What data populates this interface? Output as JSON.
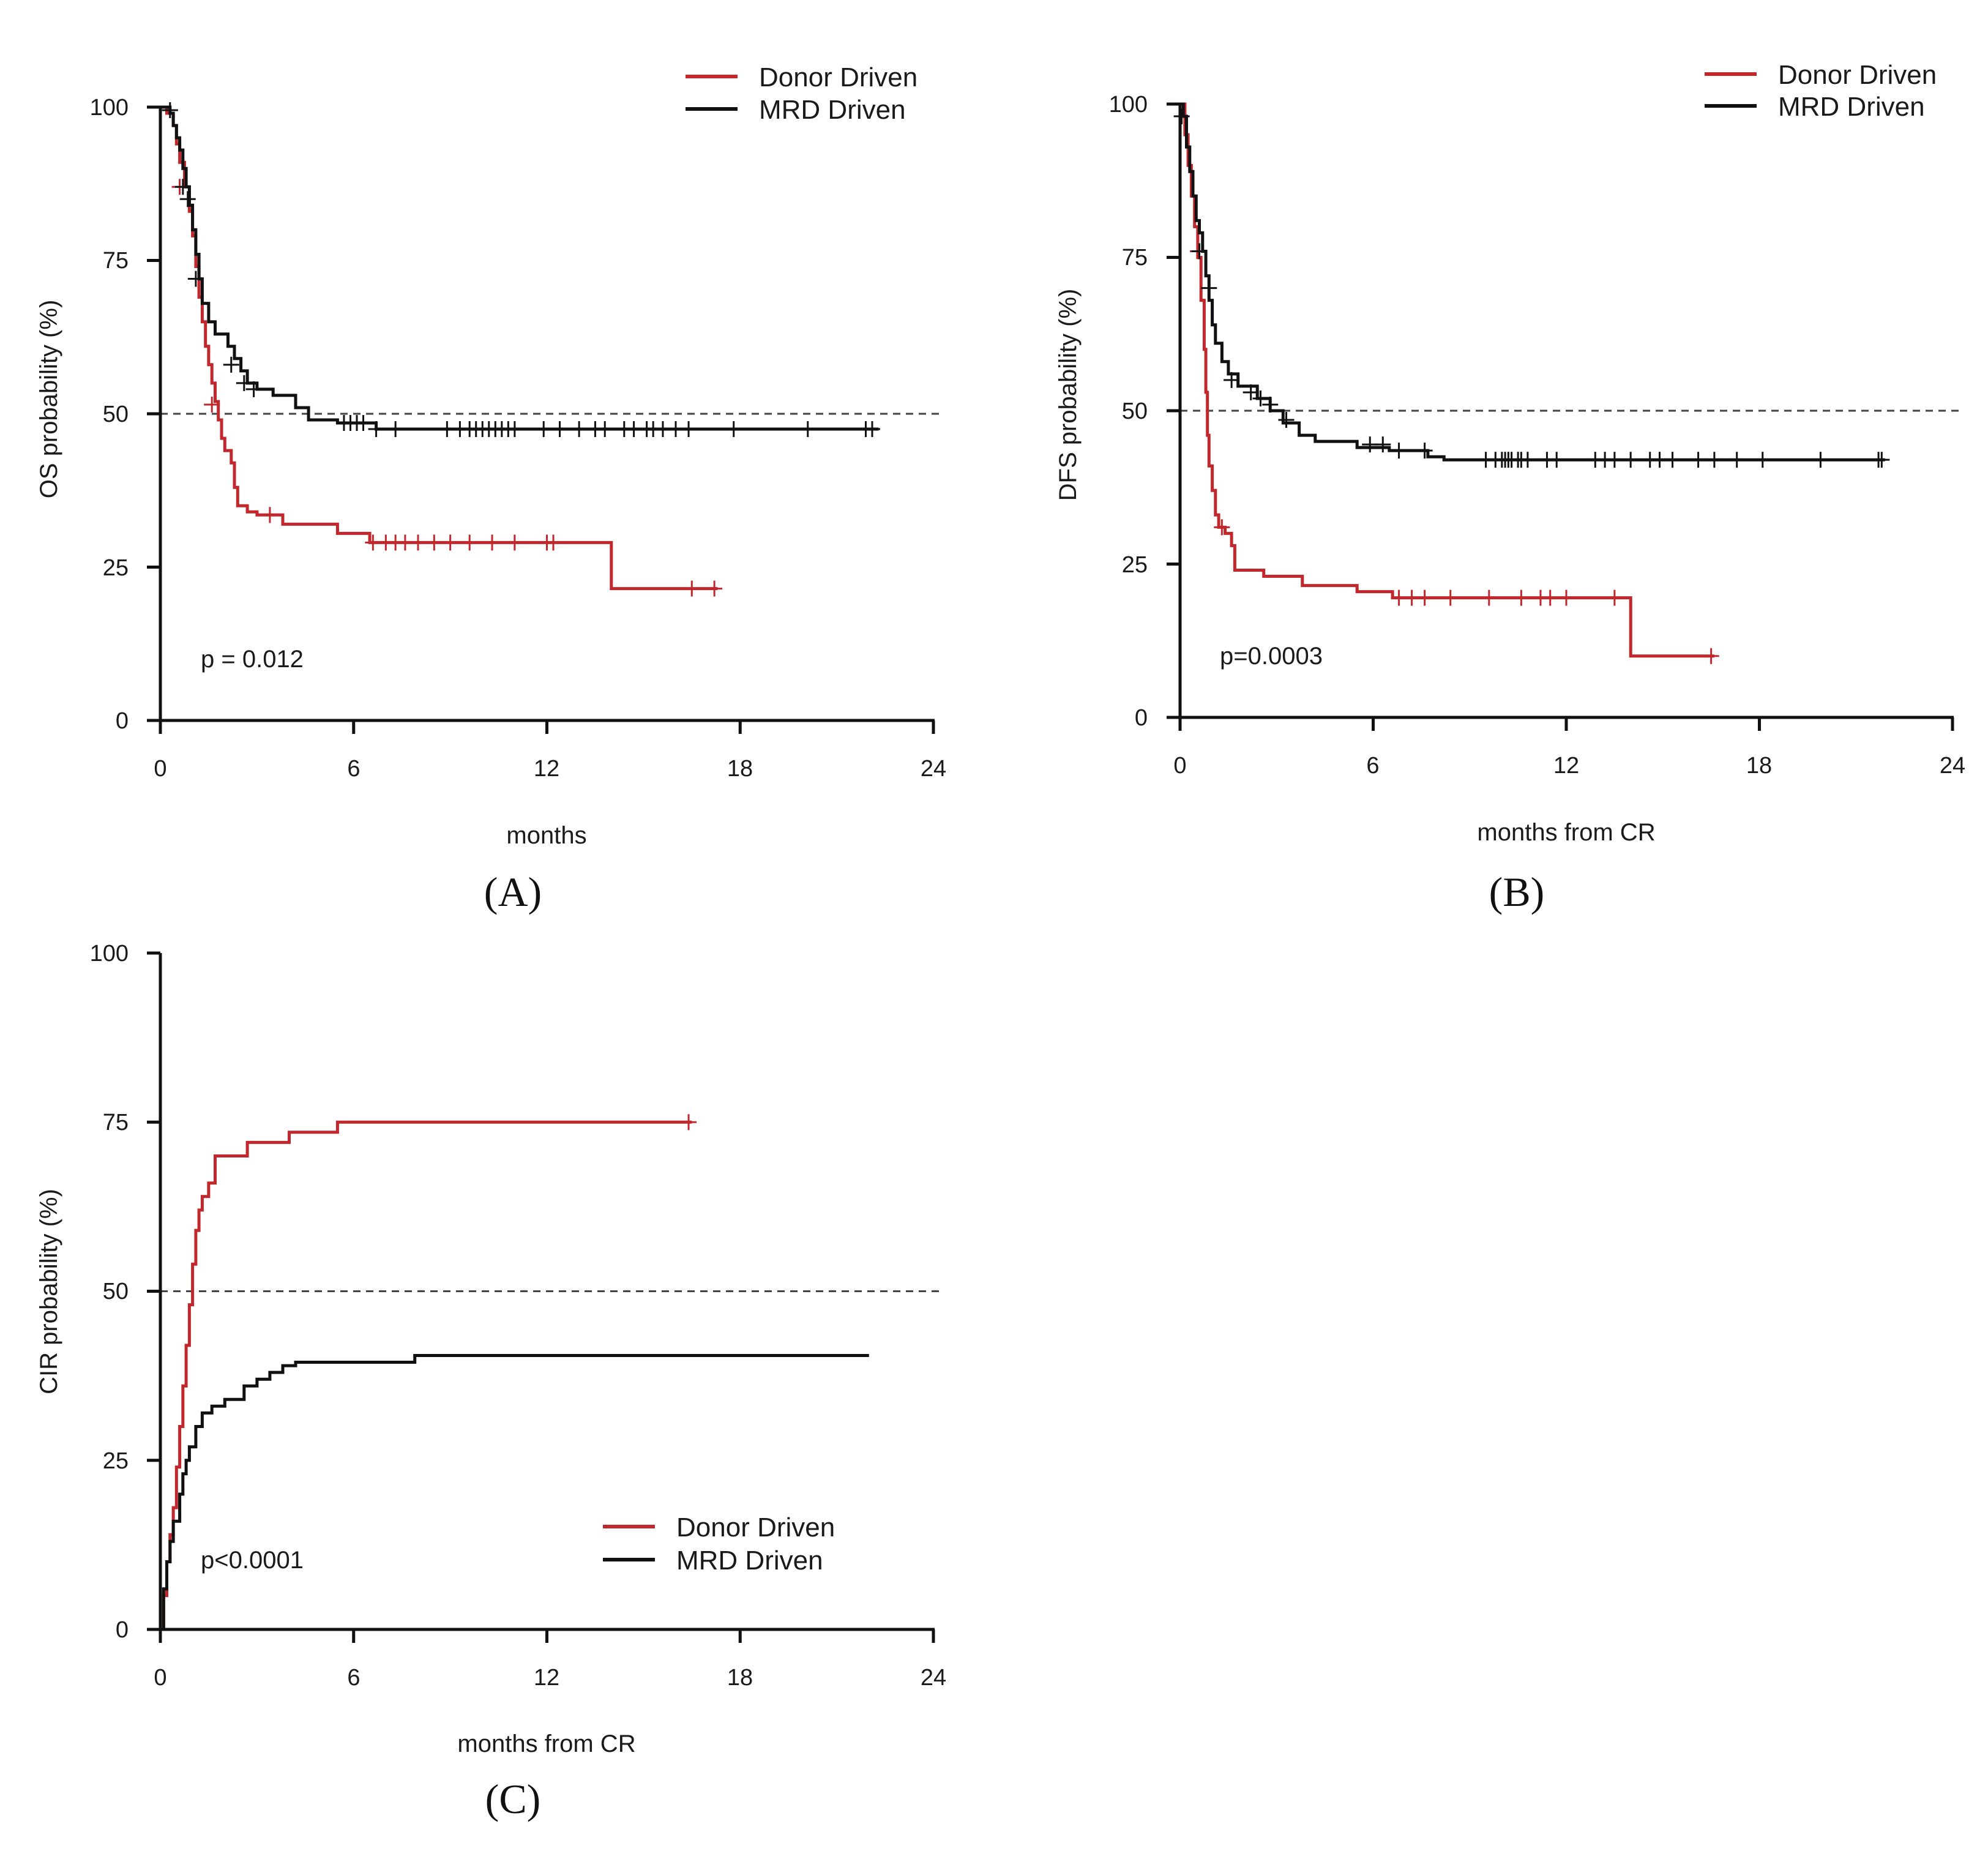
{
  "colors": {
    "donor": "#c0282d",
    "mrd": "#111111",
    "axis": "#111111",
    "reference": "#444444"
  },
  "chart_data": [
    {
      "type": "line",
      "panel_label": "(A)",
      "ylabel": "OS probability (%)",
      "xlabel": "months",
      "xlim": [
        0,
        24
      ],
      "ylim": [
        0,
        100
      ],
      "xticks": [
        "0",
        "6",
        "12",
        "18",
        "24"
      ],
      "yticks": [
        "0",
        "25",
        "50",
        "75",
        "100"
      ],
      "reference_line": 50,
      "p_value": "p = 0.012",
      "legend": [
        "Donor Driven",
        "MRD Driven"
      ],
      "series": [
        {
          "name": "Donor Driven",
          "color_key": "donor",
          "steps": [
            [
              0,
              100
            ],
            [
              0.2,
              99
            ],
            [
              0.4,
              97
            ],
            [
              0.5,
              94
            ],
            [
              0.6,
              91
            ],
            [
              0.75,
              87
            ],
            [
              0.9,
              83
            ],
            [
              1.0,
              79
            ],
            [
              1.1,
              74
            ],
            [
              1.2,
              69
            ],
            [
              1.3,
              65
            ],
            [
              1.4,
              61
            ],
            [
              1.5,
              58
            ],
            [
              1.6,
              55
            ],
            [
              1.7,
              52
            ],
            [
              1.8,
              49
            ],
            [
              1.9,
              46
            ],
            [
              2.0,
              44
            ],
            [
              2.2,
              42
            ],
            [
              2.3,
              38
            ],
            [
              2.4,
              35
            ],
            [
              2.7,
              34
            ],
            [
              3.0,
              33.5
            ],
            [
              3.8,
              32
            ],
            [
              5.5,
              30.5
            ],
            [
              6.5,
              29
            ],
            [
              14.0,
              21.5
            ],
            [
              17.3,
              21.5
            ]
          ],
          "censors": [
            [
              0.6,
              87
            ],
            [
              1.6,
              51.5
            ],
            [
              3.4,
              33.5
            ],
            [
              6.6,
              29
            ],
            [
              7.0,
              29
            ],
            [
              7.3,
              29
            ],
            [
              7.6,
              29
            ],
            [
              8.0,
              29
            ],
            [
              8.5,
              29
            ],
            [
              9.0,
              29
            ],
            [
              9.6,
              29
            ],
            [
              10.3,
              29
            ],
            [
              11.0,
              29
            ],
            [
              12.0,
              29
            ],
            [
              12.2,
              29
            ],
            [
              16.5,
              21.5
            ],
            [
              17.2,
              21.5
            ]
          ]
        },
        {
          "name": "MRD Driven",
          "color_key": "mrd",
          "steps": [
            [
              0,
              100
            ],
            [
              0.3,
              99
            ],
            [
              0.4,
              97
            ],
            [
              0.5,
              95
            ],
            [
              0.6,
              93
            ],
            [
              0.7,
              90
            ],
            [
              0.8,
              87
            ],
            [
              0.9,
              84
            ],
            [
              1.0,
              80
            ],
            [
              1.1,
              76
            ],
            [
              1.2,
              72
            ],
            [
              1.3,
              68
            ],
            [
              1.5,
              65
            ],
            [
              1.7,
              63
            ],
            [
              2.1,
              61
            ],
            [
              2.3,
              59
            ],
            [
              2.5,
              57
            ],
            [
              2.7,
              55
            ],
            [
              3.0,
              54
            ],
            [
              3.5,
              53
            ],
            [
              4.2,
              51
            ],
            [
              4.6,
              49
            ],
            [
              5.5,
              48.5
            ],
            [
              6.7,
              47.5
            ],
            [
              22.3,
              47.5
            ]
          ],
          "censors": [
            [
              0.3,
              99.5
            ],
            [
              0.7,
              87
            ],
            [
              0.85,
              85
            ],
            [
              1.1,
              72
            ],
            [
              2.2,
              58
            ],
            [
              2.6,
              55
            ],
            [
              2.9,
              54
            ],
            [
              5.7,
              48.5
            ],
            [
              5.9,
              48.5
            ],
            [
              6.1,
              48.5
            ],
            [
              6.3,
              48.5
            ],
            [
              6.7,
              47.5
            ],
            [
              7.3,
              47.5
            ],
            [
              8.9,
              47.5
            ],
            [
              9.3,
              47.5
            ],
            [
              9.6,
              47.5
            ],
            [
              9.8,
              47.5
            ],
            [
              10.0,
              47.5
            ],
            [
              10.2,
              47.5
            ],
            [
              10.4,
              47.5
            ],
            [
              10.6,
              47.5
            ],
            [
              10.8,
              47.5
            ],
            [
              11.0,
              47.5
            ],
            [
              11.9,
              47.5
            ],
            [
              12.4,
              47.5
            ],
            [
              13.0,
              47.5
            ],
            [
              13.5,
              47.5
            ],
            [
              13.8,
              47.5
            ],
            [
              14.4,
              47.5
            ],
            [
              14.7,
              47.5
            ],
            [
              15.1,
              47.5
            ],
            [
              15.3,
              47.5
            ],
            [
              15.6,
              47.5
            ],
            [
              16.0,
              47.5
            ],
            [
              16.4,
              47.5
            ],
            [
              17.8,
              47.5
            ],
            [
              20.1,
              47.5
            ],
            [
              21.9,
              47.5
            ],
            [
              22.1,
              47.5
            ]
          ]
        }
      ]
    },
    {
      "type": "line",
      "panel_label": "(B)",
      "ylabel": "DFS probability (%)",
      "xlabel": "months from CR",
      "xlim": [
        0,
        24
      ],
      "ylim": [
        0,
        100
      ],
      "xticks": [
        "0",
        "6",
        "12",
        "18",
        "24"
      ],
      "yticks": [
        "0",
        "25",
        "50",
        "75",
        "100"
      ],
      "reference_line": 50,
      "p_value": "p=0.0003",
      "legend": [
        "Donor Driven",
        "MRD Driven"
      ],
      "series": [
        {
          "name": "Donor Driven",
          "color_key": "donor",
          "steps": [
            [
              0,
              100
            ],
            [
              0.15,
              95
            ],
            [
              0.25,
              90
            ],
            [
              0.35,
              85
            ],
            [
              0.45,
              80
            ],
            [
              0.55,
              75
            ],
            [
              0.65,
              68
            ],
            [
              0.75,
              60
            ],
            [
              0.8,
              53
            ],
            [
              0.85,
              46
            ],
            [
              0.9,
              41
            ],
            [
              1.0,
              37
            ],
            [
              1.1,
              33
            ],
            [
              1.2,
              31
            ],
            [
              1.4,
              30
            ],
            [
              1.6,
              28
            ],
            [
              1.7,
              24
            ],
            [
              2.6,
              23
            ],
            [
              3.8,
              21.5
            ],
            [
              5.5,
              20.5
            ],
            [
              6.6,
              19.5
            ],
            [
              14.0,
              10
            ],
            [
              16.6,
              10
            ]
          ],
          "censors": [
            [
              0.55,
              76
            ],
            [
              1.3,
              31
            ],
            [
              6.8,
              19.5
            ],
            [
              7.2,
              19.5
            ],
            [
              7.6,
              19.5
            ],
            [
              8.4,
              19.5
            ],
            [
              9.6,
              19.5
            ],
            [
              10.6,
              19.5
            ],
            [
              11.2,
              19.5
            ],
            [
              11.5,
              19.5
            ],
            [
              12.0,
              19.5
            ],
            [
              13.5,
              19.5
            ],
            [
              16.5,
              10
            ]
          ]
        },
        {
          "name": "MRD Driven",
          "color_key": "mrd",
          "steps": [
            [
              0,
              100
            ],
            [
              0.1,
              98
            ],
            [
              0.2,
              93
            ],
            [
              0.3,
              89
            ],
            [
              0.4,
              85
            ],
            [
              0.5,
              81
            ],
            [
              0.6,
              79
            ],
            [
              0.7,
              76
            ],
            [
              0.8,
              72
            ],
            [
              0.9,
              68
            ],
            [
              1.0,
              64
            ],
            [
              1.1,
              61
            ],
            [
              1.3,
              58
            ],
            [
              1.5,
              56
            ],
            [
              1.8,
              54
            ],
            [
              2.4,
              52
            ],
            [
              2.8,
              50
            ],
            [
              3.2,
              48
            ],
            [
              3.7,
              46
            ],
            [
              4.2,
              45
            ],
            [
              5.5,
              44
            ],
            [
              6.5,
              43.5
            ],
            [
              7.7,
              42.5
            ],
            [
              8.2,
              42
            ],
            [
              21.9,
              42
            ]
          ],
          "censors": [
            [
              0.05,
              98
            ],
            [
              0.6,
              76
            ],
            [
              0.9,
              70
            ],
            [
              1.6,
              55
            ],
            [
              2.2,
              53
            ],
            [
              2.5,
              52
            ],
            [
              2.8,
              51
            ],
            [
              3.3,
              48.5
            ],
            [
              5.9,
              44.5
            ],
            [
              6.3,
              44.5
            ],
            [
              6.8,
              43.5
            ],
            [
              7.6,
              43.5
            ],
            [
              9.5,
              42
            ],
            [
              9.8,
              42
            ],
            [
              10.0,
              42
            ],
            [
              10.1,
              42
            ],
            [
              10.2,
              42
            ],
            [
              10.3,
              42
            ],
            [
              10.5,
              42
            ],
            [
              10.6,
              42
            ],
            [
              10.8,
              42
            ],
            [
              11.4,
              42
            ],
            [
              11.7,
              42
            ],
            [
              12.9,
              42
            ],
            [
              13.2,
              42
            ],
            [
              13.5,
              42
            ],
            [
              14.0,
              42
            ],
            [
              14.6,
              42
            ],
            [
              14.9,
              42
            ],
            [
              15.3,
              42
            ],
            [
              16.1,
              42
            ],
            [
              16.6,
              42
            ],
            [
              17.3,
              42
            ],
            [
              18.1,
              42
            ],
            [
              19.9,
              42
            ],
            [
              21.7,
              42
            ],
            [
              21.8,
              42
            ]
          ]
        }
      ]
    },
    {
      "type": "line",
      "panel_label": "(C)",
      "ylabel": "CIR probability (%)",
      "xlabel": "months from CR",
      "xlim": [
        0,
        24
      ],
      "ylim": [
        0,
        100
      ],
      "xticks": [
        "0",
        "6",
        "12",
        "18",
        "24"
      ],
      "yticks": [
        "0",
        "25",
        "50",
        "75",
        "100"
      ],
      "reference_line": 50,
      "p_value": "p<0.0001",
      "legend": [
        "Donor Driven",
        "MRD Driven"
      ],
      "series": [
        {
          "name": "Donor Driven",
          "color_key": "donor",
          "steps": [
            [
              0,
              0
            ],
            [
              0.1,
              5
            ],
            [
              0.2,
              10
            ],
            [
              0.3,
              14
            ],
            [
              0.4,
              18
            ],
            [
              0.5,
              24
            ],
            [
              0.6,
              30
            ],
            [
              0.7,
              36
            ],
            [
              0.8,
              42
            ],
            [
              0.9,
              48
            ],
            [
              1.0,
              54
            ],
            [
              1.1,
              59
            ],
            [
              1.2,
              62
            ],
            [
              1.3,
              64
            ],
            [
              1.5,
              66
            ],
            [
              1.7,
              70
            ],
            [
              2.7,
              72
            ],
            [
              4.0,
              73.5
            ],
            [
              5.5,
              75
            ],
            [
              16.5,
              75
            ]
          ],
          "censors": [
            [
              16.4,
              75
            ]
          ]
        },
        {
          "name": "MRD Driven",
          "color_key": "mrd",
          "steps": [
            [
              0,
              0
            ],
            [
              0.1,
              6
            ],
            [
              0.2,
              10
            ],
            [
              0.3,
              13
            ],
            [
              0.4,
              16
            ],
            [
              0.6,
              20
            ],
            [
              0.7,
              23
            ],
            [
              0.8,
              25
            ],
            [
              0.9,
              27
            ],
            [
              1.1,
              30
            ],
            [
              1.3,
              32
            ],
            [
              1.6,
              33
            ],
            [
              2.0,
              34
            ],
            [
              2.6,
              36
            ],
            [
              3.0,
              37
            ],
            [
              3.4,
              38
            ],
            [
              3.8,
              39
            ],
            [
              4.2,
              39.5
            ],
            [
              7.9,
              40.5
            ],
            [
              22.0,
              40.5
            ]
          ],
          "censors": []
        }
      ]
    }
  ]
}
